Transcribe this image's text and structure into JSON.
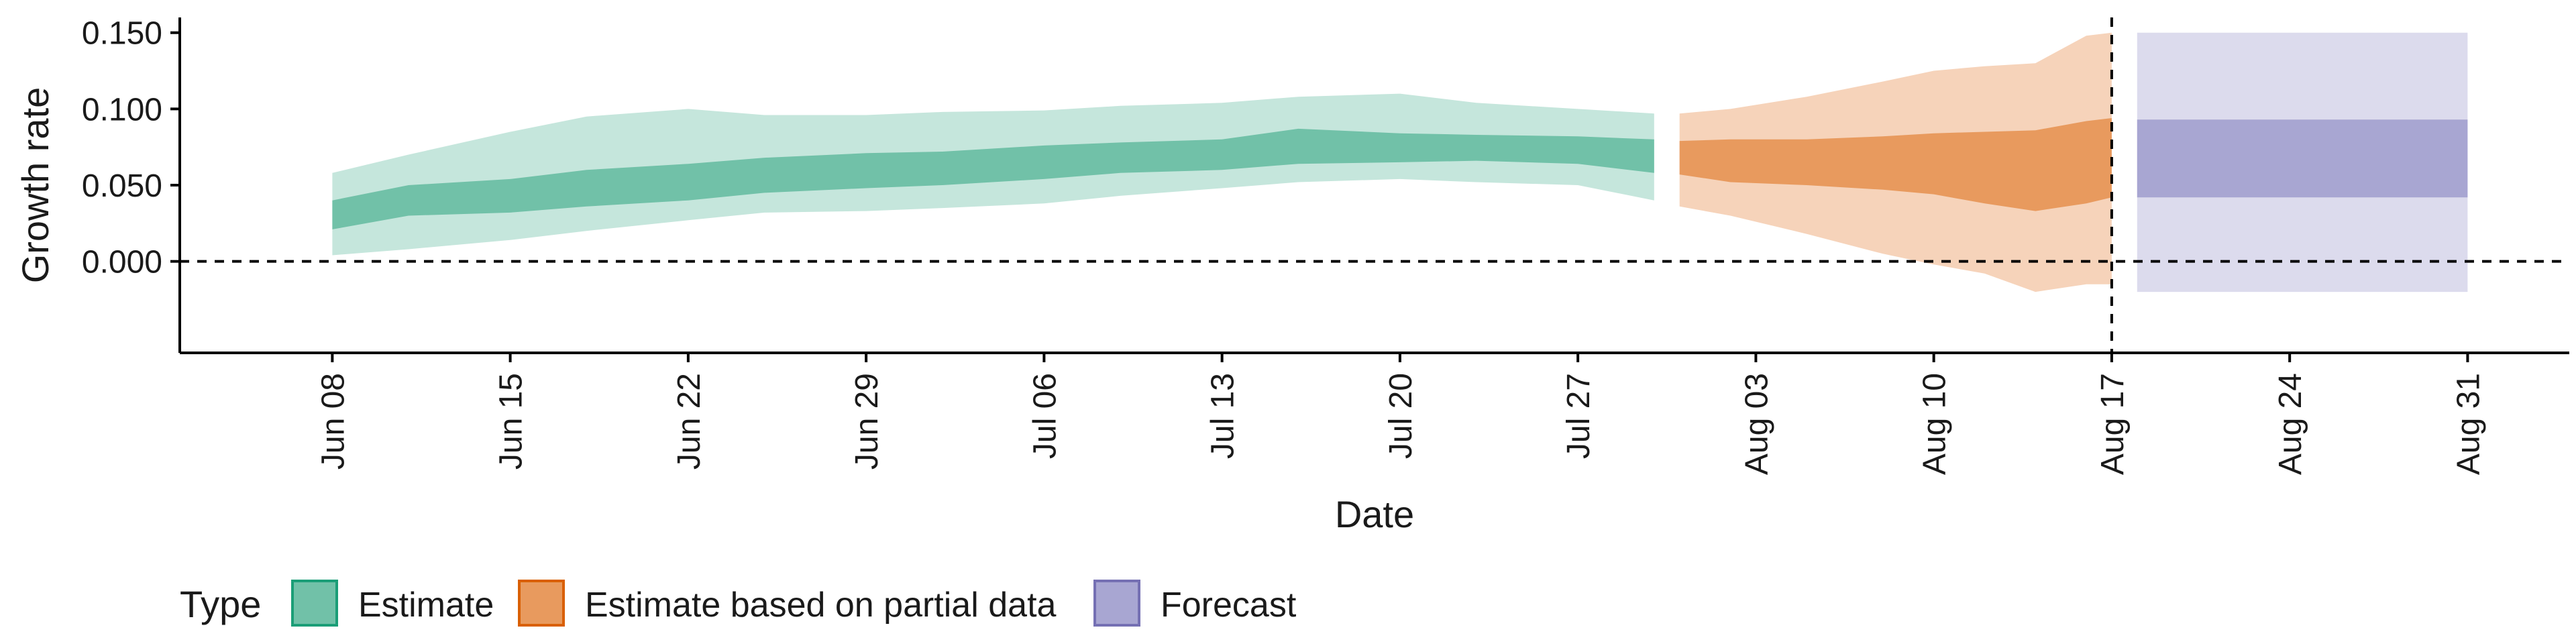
{
  "chart_data": {
    "type": "area",
    "xlabel": "Date",
    "ylabel": "Growth rate",
    "ylim": [
      -0.06,
      0.16
    ],
    "xlim": [
      "2020-06-02",
      "2020-09-04"
    ],
    "y_ticks": [
      0.0,
      0.05,
      0.1,
      0.15
    ],
    "y_tick_labels": [
      "0.000",
      "0.050",
      "0.100",
      "0.150"
    ],
    "x_ticks": [
      "2020-06-08",
      "2020-06-15",
      "2020-06-22",
      "2020-06-29",
      "2020-07-06",
      "2020-07-13",
      "2020-07-20",
      "2020-07-27",
      "2020-08-03",
      "2020-08-10",
      "2020-08-17",
      "2020-08-24",
      "2020-08-31"
    ],
    "x_tick_labels": [
      "Jun 08",
      "Jun 15",
      "Jun 22",
      "Jun 29",
      "Jul 06",
      "Jul 13",
      "Jul 20",
      "Jul 27",
      "Aug 03",
      "Aug 10",
      "Aug 17",
      "Aug 24",
      "Aug 31"
    ],
    "reference_lines": {
      "horizontal_y": 0,
      "vertical_x": "2020-08-17",
      "style": "dashed"
    },
    "grid": false,
    "legend": {
      "title": "Type",
      "placement": "bottom-left",
      "entries": [
        "Estimate",
        "Estimate based on partial data",
        "Forecast"
      ]
    },
    "colors": {
      "Estimate": {
        "inner": "#71c1a8",
        "outer": "#c5e6dc",
        "border": "#1b9e77"
      },
      "Estimate based on partial data": {
        "inner": "#e89a5e",
        "outer": "#f6d3ba",
        "border": "#d95f02"
      },
      "Forecast": {
        "inner": "#a8a6d2",
        "outer": "#dcdbed",
        "border": "#7570b3"
      }
    },
    "series": [
      {
        "name": "Estimate",
        "x": [
          "2020-06-08",
          "2020-06-11",
          "2020-06-15",
          "2020-06-18",
          "2020-06-22",
          "2020-06-25",
          "2020-06-29",
          "2020-07-02",
          "2020-07-06",
          "2020-07-09",
          "2020-07-13",
          "2020-07-16",
          "2020-07-20",
          "2020-07-23",
          "2020-07-27",
          "2020-07-30"
        ],
        "inner_upper": [
          0.04,
          0.05,
          0.054,
          0.06,
          0.064,
          0.068,
          0.071,
          0.072,
          0.076,
          0.078,
          0.08,
          0.087,
          0.084,
          0.083,
          0.082,
          0.08
        ],
        "inner_lower": [
          0.021,
          0.03,
          0.032,
          0.036,
          0.04,
          0.045,
          0.048,
          0.05,
          0.054,
          0.058,
          0.06,
          0.064,
          0.065,
          0.066,
          0.064,
          0.058
        ],
        "outer_upper": [
          0.058,
          0.07,
          0.085,
          0.095,
          0.1,
          0.096,
          0.096,
          0.098,
          0.099,
          0.102,
          0.104,
          0.108,
          0.11,
          0.104,
          0.1,
          0.097
        ],
        "outer_lower": [
          0.004,
          0.008,
          0.014,
          0.02,
          0.027,
          0.032,
          0.033,
          0.035,
          0.038,
          0.043,
          0.048,
          0.052,
          0.054,
          0.052,
          0.05,
          0.04
        ]
      },
      {
        "name": "Estimate based on partial data",
        "x": [
          "2020-07-31",
          "2020-08-02",
          "2020-08-05",
          "2020-08-08",
          "2020-08-10",
          "2020-08-12",
          "2020-08-14",
          "2020-08-16",
          "2020-08-17"
        ],
        "inner_upper": [
          0.079,
          0.08,
          0.08,
          0.082,
          0.084,
          0.085,
          0.086,
          0.092,
          0.094
        ],
        "inner_lower": [
          0.057,
          0.052,
          0.05,
          0.047,
          0.044,
          0.038,
          0.033,
          0.038,
          0.042
        ],
        "outer_upper": [
          0.097,
          0.1,
          0.108,
          0.118,
          0.125,
          0.128,
          0.13,
          0.148,
          0.15
        ],
        "outer_lower": [
          0.036,
          0.03,
          0.018,
          0.005,
          -0.002,
          -0.008,
          -0.02,
          -0.015,
          -0.015
        ]
      },
      {
        "name": "Forecast",
        "x": [
          "2020-08-18",
          "2020-08-31"
        ],
        "inner_upper": [
          0.093,
          0.093
        ],
        "inner_lower": [
          0.042,
          0.042
        ],
        "outer_upper": [
          0.15,
          0.15
        ],
        "outer_lower": [
          -0.02,
          -0.02
        ]
      }
    ]
  }
}
